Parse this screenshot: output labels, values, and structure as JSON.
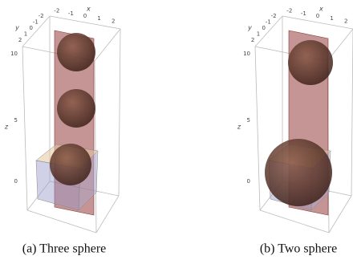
{
  "figures": [
    {
      "caption": "(a) Three sphere",
      "axes": {
        "x": {
          "label": "x",
          "ticks": [
            -2,
            -1,
            0,
            1,
            2
          ]
        },
        "y": {
          "label": "y",
          "ticks": [
            2,
            1,
            0,
            -1,
            -2
          ]
        },
        "z": {
          "label": "z",
          "ticks": [
            10,
            5,
            0
          ]
        }
      }
    },
    {
      "caption": "(b) Two sphere",
      "axes": {
        "x": {
          "label": "x",
          "ticks": [
            -2,
            -1,
            0,
            1,
            2
          ]
        },
        "y": {
          "label": "y",
          "ticks": [
            2,
            1,
            0,
            -1,
            -2
          ]
        },
        "z": {
          "label": "z",
          "ticks": [
            10,
            5,
            0
          ]
        }
      }
    }
  ]
}
